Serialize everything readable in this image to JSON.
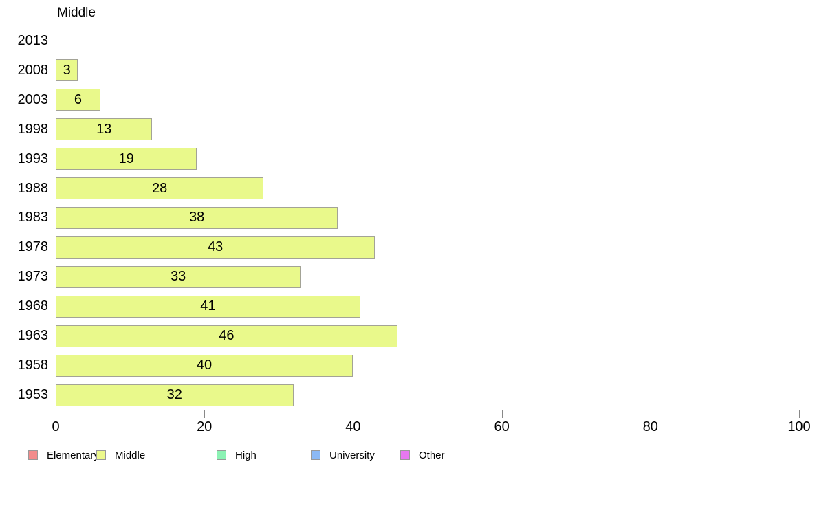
{
  "title": "Middle",
  "chart_data": {
    "type": "bar",
    "orientation": "horizontal",
    "title": "Middle",
    "categories": [
      "2013",
      "2008",
      "2003",
      "1998",
      "1993",
      "1988",
      "1983",
      "1978",
      "1973",
      "1968",
      "1963",
      "1958",
      "1953"
    ],
    "series": [
      {
        "name": "Middle",
        "values": [
          null,
          3,
          6,
          13,
          19,
          28,
          38,
          43,
          33,
          41,
          46,
          40,
          32
        ]
      }
    ],
    "data_labels": "inside-center",
    "xlabel": "",
    "ylabel": "",
    "xlim": [
      0,
      100
    ],
    "x_ticks": [
      0,
      20,
      40,
      60,
      80,
      100
    ],
    "grid": false,
    "legend_position": "bottom",
    "bar_fill_color": "#E9F98B",
    "bar_border_color": "#A3A396",
    "axis_color": "#888888",
    "text_color": "#000000",
    "background_color": "#FFFFFF"
  },
  "legend": {
    "items": [
      {
        "label": "Elementary",
        "color": "#F28C8C"
      },
      {
        "label": "Middle",
        "color": "#EDF98B"
      },
      {
        "label": "High",
        "color": "#8CF2B4"
      },
      {
        "label": "University",
        "color": "#8CB9F5"
      },
      {
        "label": "Other",
        "color": "#E678F0"
      }
    ]
  }
}
